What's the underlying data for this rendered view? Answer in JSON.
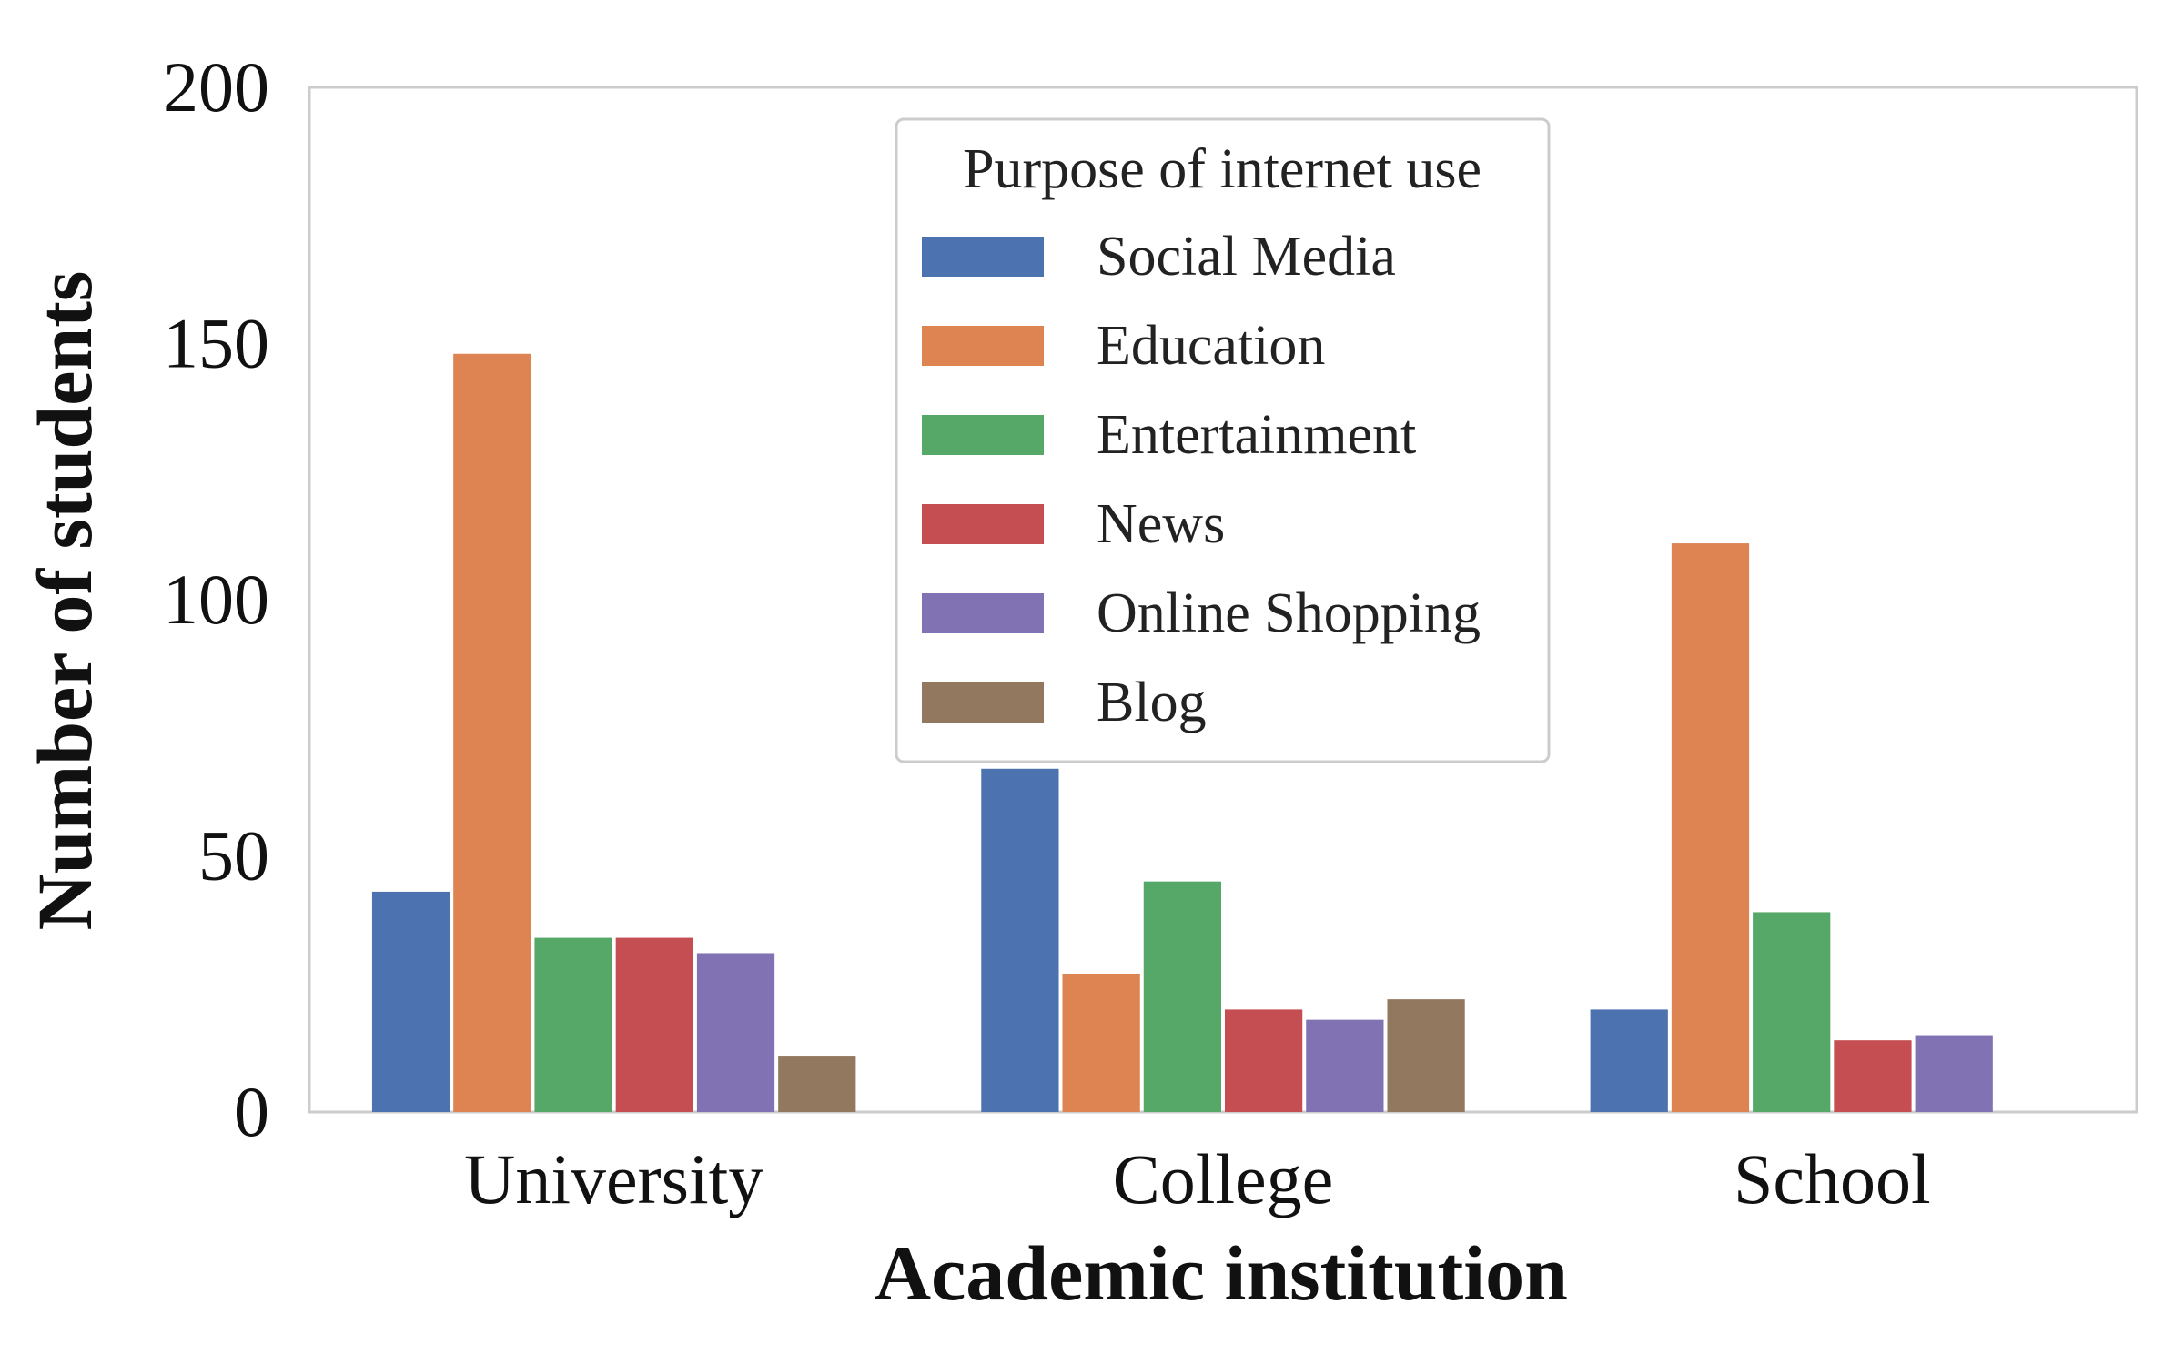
{
  "chart_data": {
    "type": "bar",
    "title": "",
    "xlabel": "Academic institution",
    "ylabel": "Number of students",
    "ylim": [
      0,
      200
    ],
    "yticks": [
      0,
      50,
      100,
      150,
      200
    ],
    "grid": false,
    "legend": {
      "title": "Purpose of internet use",
      "placement": "top-center"
    },
    "categories": [
      "University",
      "College",
      "School"
    ],
    "series": [
      {
        "name": "Social Media",
        "color": "#4c72b0",
        "values": [
          43,
          67,
          20
        ]
      },
      {
        "name": "Education",
        "color": "#dd8452",
        "values": [
          148,
          27,
          111
        ]
      },
      {
        "name": "Entertainment",
        "color": "#55a868",
        "values": [
          34,
          45,
          39
        ]
      },
      {
        "name": "News",
        "color": "#c44e52",
        "values": [
          34,
          20,
          14
        ]
      },
      {
        "name": "Online Shopping",
        "color": "#8172b3",
        "values": [
          31,
          18,
          15
        ]
      },
      {
        "name": "Blog",
        "color": "#937860",
        "values": [
          11,
          22,
          0
        ]
      }
    ]
  }
}
